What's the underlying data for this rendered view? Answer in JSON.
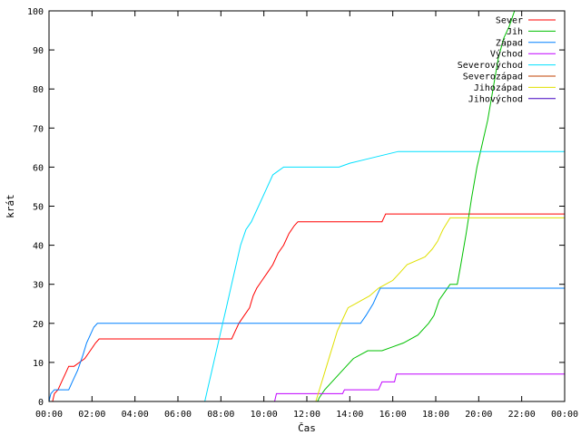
{
  "chart_data": {
    "type": "line",
    "title": "",
    "xlabel": "Čas",
    "ylabel": "krát",
    "ylim": [
      0,
      100
    ],
    "xlim": [
      "00:00",
      "24:00"
    ],
    "x_ticks": [
      "00:00",
      "02:00",
      "04:00",
      "06:00",
      "08:00",
      "10:00",
      "12:00",
      "14:00",
      "16:00",
      "18:00",
      "20:00",
      "22:00",
      "00:00"
    ],
    "y_ticks": [
      0,
      10,
      20,
      30,
      40,
      50,
      60,
      70,
      80,
      90,
      100
    ],
    "grid": false,
    "legend_position": "top-right",
    "series": [
      {
        "name": "Sever",
        "color": "#ff0000",
        "points": [
          [
            "00:00",
            0
          ],
          [
            "00:10",
            0
          ],
          [
            "00:15",
            2
          ],
          [
            "00:25",
            3
          ],
          [
            "00:35",
            5
          ],
          [
            "00:45",
            7
          ],
          [
            "00:55",
            9
          ],
          [
            "01:10",
            9
          ],
          [
            "01:25",
            10
          ],
          [
            "01:40",
            11
          ],
          [
            "01:55",
            13
          ],
          [
            "02:10",
            15
          ],
          [
            "02:20",
            16
          ],
          [
            "08:30",
            16
          ],
          [
            "08:40",
            18
          ],
          [
            "08:50",
            20
          ],
          [
            "09:05",
            22
          ],
          [
            "09:20",
            24
          ],
          [
            "09:30",
            27
          ],
          [
            "09:40",
            29
          ],
          [
            "09:55",
            31
          ],
          [
            "10:10",
            33
          ],
          [
            "10:25",
            35
          ],
          [
            "10:40",
            38
          ],
          [
            "10:55",
            40
          ],
          [
            "11:10",
            43
          ],
          [
            "11:25",
            45
          ],
          [
            "11:35",
            46
          ],
          [
            "15:30",
            46
          ],
          [
            "15:40",
            48
          ],
          [
            "24:00",
            48
          ]
        ]
      },
      {
        "name": "Jih",
        "color": "#00c000",
        "points": [
          [
            "12:30",
            0
          ],
          [
            "12:35",
            1
          ],
          [
            "12:50",
            3
          ],
          [
            "13:10",
            5
          ],
          [
            "13:30",
            7
          ],
          [
            "13:50",
            9
          ],
          [
            "14:10",
            11
          ],
          [
            "14:30",
            12
          ],
          [
            "14:50",
            13
          ],
          [
            "15:30",
            13
          ],
          [
            "16:00",
            14
          ],
          [
            "16:30",
            15
          ],
          [
            "17:10",
            17
          ],
          [
            "17:40",
            20
          ],
          [
            "17:55",
            22
          ],
          [
            "18:10",
            26
          ],
          [
            "18:25",
            28
          ],
          [
            "18:40",
            30
          ],
          [
            "19:00",
            30
          ],
          [
            "19:10",
            35
          ],
          [
            "19:25",
            43
          ],
          [
            "19:40",
            52
          ],
          [
            "19:55",
            60
          ],
          [
            "20:10",
            66
          ],
          [
            "20:25",
            72
          ],
          [
            "20:40",
            80
          ],
          [
            "20:55",
            88
          ],
          [
            "21:10",
            93
          ],
          [
            "21:25",
            96
          ],
          [
            "21:40",
            100
          ]
        ]
      },
      {
        "name": "Západ",
        "color": "#0080ff",
        "points": [
          [
            "00:00",
            0
          ],
          [
            "00:05",
            2
          ],
          [
            "00:15",
            3
          ],
          [
            "00:55",
            3
          ],
          [
            "01:05",
            5
          ],
          [
            "01:20",
            8
          ],
          [
            "01:35",
            12
          ],
          [
            "01:45",
            15
          ],
          [
            "01:55",
            17
          ],
          [
            "02:05",
            19
          ],
          [
            "02:15",
            20
          ],
          [
            "14:30",
            20
          ],
          [
            "14:45",
            22
          ],
          [
            "15:05",
            25
          ],
          [
            "15:15",
            27
          ],
          [
            "15:25",
            29
          ],
          [
            "24:00",
            29
          ]
        ]
      },
      {
        "name": "Východ",
        "color": "#c000ff",
        "points": [
          [
            "10:30",
            0
          ],
          [
            "10:35",
            2
          ],
          [
            "13:40",
            2
          ],
          [
            "13:45",
            3
          ],
          [
            "15:20",
            3
          ],
          [
            "15:30",
            5
          ],
          [
            "16:05",
            5
          ],
          [
            "16:10",
            7
          ],
          [
            "24:00",
            7
          ]
        ]
      },
      {
        "name": "Severovýchod",
        "color": "#00e0ff",
        "points": [
          [
            "07:15",
            0
          ],
          [
            "07:25",
            4
          ],
          [
            "07:35",
            8
          ],
          [
            "07:45",
            12
          ],
          [
            "07:55",
            16
          ],
          [
            "08:05",
            20
          ],
          [
            "08:15",
            24
          ],
          [
            "08:25",
            28
          ],
          [
            "08:35",
            32
          ],
          [
            "08:45",
            36
          ],
          [
            "08:55",
            40
          ],
          [
            "09:10",
            44
          ],
          [
            "09:25",
            46
          ],
          [
            "09:40",
            49
          ],
          [
            "09:55",
            52
          ],
          [
            "10:10",
            55
          ],
          [
            "10:25",
            58
          ],
          [
            "10:40",
            59
          ],
          [
            "10:55",
            60
          ],
          [
            "13:30",
            60
          ],
          [
            "14:00",
            61
          ],
          [
            "14:45",
            62
          ],
          [
            "16:15",
            64
          ],
          [
            "24:00",
            64
          ]
        ]
      },
      {
        "name": "Severozápad",
        "color": "#c04000",
        "points": []
      },
      {
        "name": "Jihozápad",
        "color": "#e0e000",
        "points": [
          [
            "12:25",
            0
          ],
          [
            "12:35",
            3
          ],
          [
            "12:45",
            6
          ],
          [
            "12:55",
            9
          ],
          [
            "13:05",
            12
          ],
          [
            "13:15",
            15
          ],
          [
            "13:25",
            18
          ],
          [
            "13:40",
            21
          ],
          [
            "13:55",
            24
          ],
          [
            "14:15",
            25
          ],
          [
            "14:35",
            26
          ],
          [
            "14:55",
            27
          ],
          [
            "15:20",
            29
          ],
          [
            "15:40",
            30
          ],
          [
            "16:00",
            31
          ],
          [
            "16:20",
            33
          ],
          [
            "16:40",
            35
          ],
          [
            "17:30",
            37
          ],
          [
            "17:50",
            39
          ],
          [
            "18:05",
            41
          ],
          [
            "18:20",
            44
          ],
          [
            "18:40",
            47
          ],
          [
            "24:00",
            47
          ]
        ]
      },
      {
        "name": "Jihovýchod",
        "color": "#4000c0",
        "points": []
      }
    ]
  }
}
